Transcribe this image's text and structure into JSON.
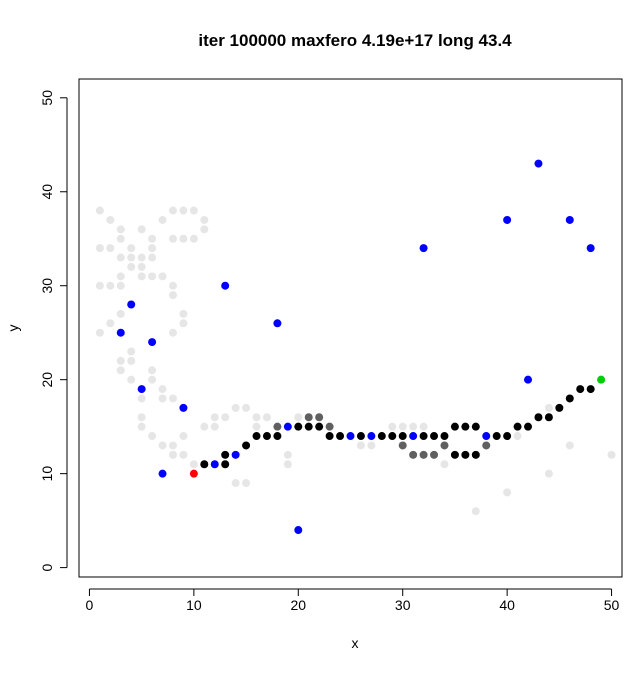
{
  "chart_data": {
    "type": "scatter",
    "title": "iter 100000 maxfero 4.19e+17 long 43.4",
    "x_label": "x",
    "y_label": "y",
    "xlim": [
      -1,
      51
    ],
    "ylim": [
      -1,
      52
    ],
    "xticks": [
      0,
      10,
      20,
      30,
      40,
      50
    ],
    "yticks": [
      0,
      10,
      20,
      30,
      40,
      50
    ],
    "series": [
      {
        "color": "#e6e6e6",
        "x": [
          1,
          2,
          1,
          2,
          3,
          3,
          3,
          4,
          5,
          4,
          5,
          6,
          5,
          6,
          7,
          6,
          6,
          5,
          4,
          7,
          8,
          9,
          10,
          11,
          11,
          8,
          9,
          10,
          1,
          2,
          3,
          3,
          2,
          1,
          3,
          3,
          3,
          4,
          4,
          4,
          5,
          5,
          5,
          6,
          6,
          6,
          7,
          7,
          8,
          8,
          8,
          8,
          9,
          9,
          7,
          8,
          8,
          9,
          9,
          10,
          11,
          12,
          12,
          13,
          14,
          15,
          14,
          15,
          16,
          16,
          17,
          19,
          19,
          20,
          26,
          27,
          29,
          30,
          31,
          32,
          34,
          41,
          44,
          46,
          50,
          44,
          40,
          37
        ],
        "values": [
          38,
          37,
          34,
          34,
          36,
          35,
          33,
          33,
          33,
          32,
          32,
          33,
          31,
          31,
          31,
          34,
          35,
          36,
          34,
          37,
          38,
          38,
          38,
          37,
          36,
          35,
          35,
          35,
          30,
          30,
          30,
          31,
          26,
          25,
          27,
          22,
          21,
          23,
          22,
          20,
          18,
          16,
          15,
          14,
          20,
          21,
          18,
          19,
          18,
          25,
          29,
          30,
          26,
          27,
          13,
          13,
          12,
          14,
          12,
          11,
          15,
          15,
          16,
          16,
          17,
          17,
          9,
          9,
          15,
          16,
          16,
          11,
          12,
          16,
          13,
          13,
          15,
          15,
          15,
          15,
          11,
          14,
          17,
          13,
          12,
          10,
          8,
          6
        ]
      },
      {
        "color": "#606060",
        "x": [
          18,
          21,
          22,
          23,
          30,
          31,
          32,
          33,
          34,
          38
        ],
        "values": [
          15,
          16,
          16,
          15,
          13,
          12,
          12,
          12,
          13,
          13
        ]
      },
      {
        "color": "#000000",
        "x": [
          11,
          13,
          13,
          15,
          16,
          17,
          18,
          20,
          21,
          22,
          23,
          24,
          26,
          28,
          29,
          30,
          32,
          33,
          34,
          35,
          36,
          37,
          35,
          36,
          37,
          39,
          40,
          41,
          42,
          43,
          44,
          45,
          46,
          47,
          48
        ],
        "values": [
          11,
          11,
          12,
          13,
          14,
          14,
          14,
          15,
          15,
          15,
          14,
          14,
          14,
          14,
          14,
          14,
          14,
          14,
          14,
          15,
          15,
          15,
          12,
          12,
          12,
          14,
          14,
          15,
          15,
          16,
          16,
          17,
          18,
          19,
          19
        ]
      },
      {
        "color": "#0000ff",
        "x": [
          3,
          4,
          5,
          6,
          7,
          9,
          12,
          13,
          14,
          18,
          19,
          20,
          25,
          27,
          31,
          32,
          38,
          40,
          42,
          43,
          46,
          48
        ],
        "values": [
          25,
          28,
          19,
          24,
          10,
          17,
          11,
          30,
          12,
          26,
          15,
          4,
          14,
          14,
          14,
          34,
          14,
          37,
          20,
          43,
          37,
          34
        ]
      },
      {
        "color": "#ff0000",
        "x": [
          10
        ],
        "values": [
          10
        ]
      },
      {
        "color": "#00cd00",
        "x": [
          49
        ],
        "values": [
          20
        ]
      }
    ]
  }
}
